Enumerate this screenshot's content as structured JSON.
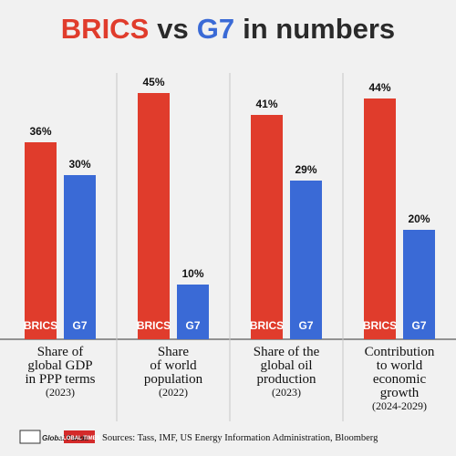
{
  "chart_data": {
    "type": "bar",
    "title_parts": [
      "BRICS",
      "vs",
      "G7",
      "in numbers"
    ],
    "title_colors": [
      "#e03c2c",
      "#2a2a2a",
      "#3a6ad6",
      "#2a2a2a"
    ],
    "categories": [
      [
        "Share of",
        "global GDP",
        "in PPP terms"
      ],
      [
        "Share",
        "of world",
        "population"
      ],
      [
        "Share of the",
        "global oil",
        "production"
      ],
      [
        "Contribution",
        "to world",
        "economic",
        "growth"
      ]
    ],
    "category_years": [
      "(2023)",
      "(2022)",
      "(2023)",
      "(2024-2029)"
    ],
    "series": [
      {
        "name": "BRICS",
        "color": "#e03c2c",
        "values": [
          36,
          45,
          41,
          44
        ],
        "value_labels": [
          "36%",
          "45%",
          "41%",
          "44%"
        ]
      },
      {
        "name": "G7",
        "color": "#3a6ad6",
        "values": [
          30,
          10,
          29,
          20
        ],
        "value_labels": [
          "30%",
          "10%",
          "29%",
          "20%"
        ]
      }
    ],
    "logos": [
      "Global Panda",
      "GLOBAL TIMES"
    ],
    "source": "Sources: Tass, IMF, US Energy Information Administration, Bloomberg"
  }
}
